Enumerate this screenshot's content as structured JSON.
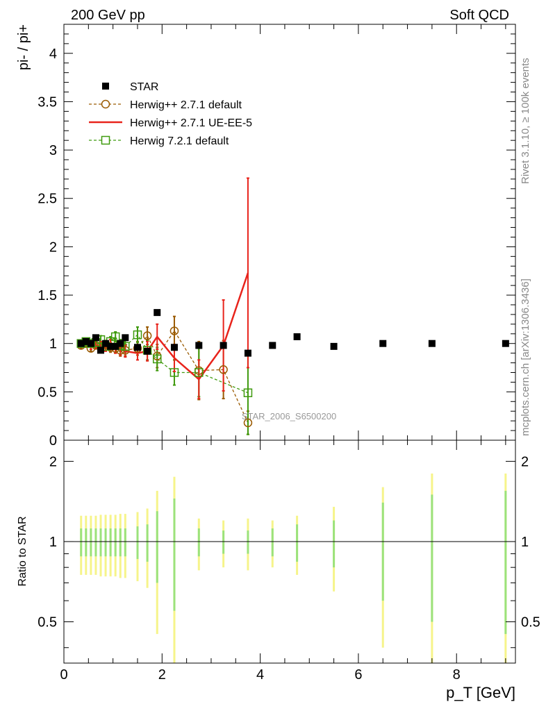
{
  "header": {
    "left": "200 GeV pp",
    "right": "Soft QCD"
  },
  "side_labels": {
    "rivet": "Rivet 3.1.10, ≥ 100k events",
    "mcplots": "mcplots.cern.ch [arXiv:1306.3436]"
  },
  "watermark": "STAR_2006_S6500200",
  "colors": {
    "star": "#000000",
    "herwig_271_default": "#9a5a00",
    "herwig_271_ueee5": "#e8231b",
    "herwig_721_default": "#3f9a0e",
    "band_inner": "#9be27b",
    "band_outer": "#f6f48a"
  },
  "chart_data": [
    {
      "type": "scatter",
      "title": "",
      "ylabel": "pi- / pi+",
      "xlim": [
        0,
        9.2
      ],
      "ylim": [
        0,
        4.3
      ],
      "yticks": [
        "0",
        "0.5",
        "1",
        "1.5",
        "2",
        "2.5",
        "3",
        "3.5",
        "4"
      ],
      "legend_position": "top-left",
      "series": [
        {
          "name": "STAR",
          "style": "filled-square",
          "x": [
            0.35,
            0.45,
            0.55,
            0.65,
            0.75,
            0.85,
            0.95,
            1.05,
            1.15,
            1.25,
            1.5,
            1.7,
            1.9,
            2.25,
            2.75,
            3.25,
            3.75,
            4.25,
            4.75,
            5.5,
            6.5,
            7.5,
            9.0
          ],
          "y": [
            1.0,
            1.02,
            1.0,
            1.06,
            0.93,
            1.0,
            0.97,
            0.97,
            1.0,
            1.06,
            0.96,
            0.92,
            1.32,
            0.96,
            0.98,
            0.98,
            0.9,
            0.98,
            1.07,
            0.97,
            1.0,
            1.0,
            1.0
          ]
        },
        {
          "name": "Herwig++ 2.7.1 default",
          "style": "dashed-open-circle",
          "x": [
            0.35,
            0.45,
            0.55,
            0.65,
            0.75,
            0.85,
            0.95,
            1.05,
            1.15,
            1.25,
            1.5,
            1.7,
            1.9,
            2.25,
            2.75,
            3.25,
            3.75
          ],
          "y": [
            0.98,
            1.0,
            0.95,
            0.98,
            0.97,
            0.99,
            0.96,
            0.95,
            0.93,
            0.93,
            0.95,
            1.08,
            0.87,
            1.13,
            0.72,
            0.73,
            0.18
          ],
          "err": [
            0.03,
            0.03,
            0.03,
            0.03,
            0.04,
            0.04,
            0.05,
            0.05,
            0.06,
            0.06,
            0.07,
            0.09,
            0.12,
            0.15,
            0.3,
            0.3,
            0.12
          ]
        },
        {
          "name": "Herwig++ 2.7.1 UE-EE-5",
          "style": "solid-line",
          "x": [
            0.35,
            0.45,
            0.55,
            0.65,
            0.75,
            0.85,
            0.95,
            1.05,
            1.15,
            1.25,
            1.5,
            1.7,
            1.9,
            2.25,
            2.75,
            3.25,
            3.75
          ],
          "y": [
            0.99,
            1.01,
            0.97,
            0.98,
            0.98,
            0.96,
            0.99,
            0.95,
            0.94,
            0.92,
            0.9,
            0.92,
            1.07,
            0.85,
            0.63,
            0.98,
            1.73
          ],
          "err": [
            0.03,
            0.03,
            0.03,
            0.03,
            0.04,
            0.04,
            0.05,
            0.05,
            0.06,
            0.06,
            0.07,
            0.1,
            0.13,
            0.14,
            0.2,
            0.47,
            0.98
          ]
        },
        {
          "name": "Herwig 7.2.1 default",
          "style": "dashed-open-square",
          "x": [
            0.35,
            0.45,
            0.55,
            0.65,
            0.75,
            0.85,
            0.95,
            1.05,
            1.15,
            1.25,
            1.5,
            1.7,
            1.9,
            2.25,
            2.75,
            3.25,
            3.75
          ],
          "y": [
            1.0,
            1.02,
            1.0,
            1.01,
            1.04,
            0.97,
            1.02,
            1.07,
            0.98,
            0.97,
            1.09,
            0.93,
            0.84,
            0.7,
            0.7,
            null,
            0.49
          ],
          "err": [
            0.03,
            0.03,
            0.03,
            0.03,
            0.04,
            0.04,
            0.05,
            0.05,
            0.06,
            0.06,
            0.08,
            0.1,
            0.12,
            0.13,
            0.25,
            null,
            0.43
          ]
        }
      ]
    },
    {
      "type": "scatter",
      "title": "",
      "xlabel": "p_T [GeV]",
      "ylabel": "Ratio to STAR",
      "xlim": [
        0,
        9.2
      ],
      "ylim": [
        0.35,
        2.4
      ],
      "yscale": "log",
      "xticks": [
        "0",
        "2",
        "4",
        "6",
        "8"
      ],
      "yticks": [
        "0.5",
        "1",
        "2"
      ],
      "reference_line": 1,
      "uncertainty_bands": {
        "x": [
          0.35,
          0.45,
          0.55,
          0.65,
          0.75,
          0.85,
          0.95,
          1.05,
          1.15,
          1.25,
          1.5,
          1.7,
          1.9,
          2.25,
          2.75,
          3.25,
          3.75,
          4.25,
          4.75,
          5.5,
          6.5,
          7.5,
          9.0
        ],
        "stat_rel": [
          0.12,
          0.12,
          0.12,
          0.12,
          0.12,
          0.12,
          0.12,
          0.12,
          0.12,
          0.12,
          0.14,
          0.16,
          0.3,
          0.45,
          0.12,
          0.1,
          0.1,
          0.12,
          0.16,
          0.2,
          0.4,
          0.5,
          0.55
        ],
        "total_rel": [
          0.25,
          0.25,
          0.25,
          0.25,
          0.26,
          0.26,
          0.26,
          0.26,
          0.27,
          0.27,
          0.29,
          0.33,
          0.55,
          0.75,
          0.22,
          0.2,
          0.22,
          0.2,
          0.25,
          0.35,
          0.6,
          0.8,
          0.8
        ]
      }
    }
  ]
}
